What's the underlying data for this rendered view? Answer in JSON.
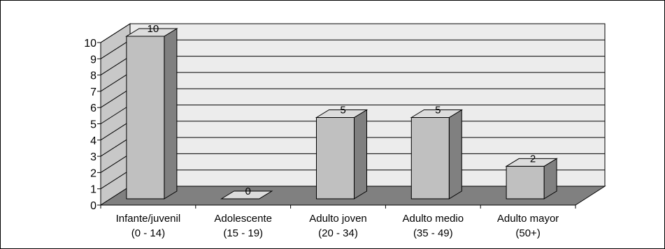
{
  "chart_data": {
    "type": "bar",
    "style": "3d-column",
    "categories": [
      [
        "Infante/juvenil",
        "(0 - 14)"
      ],
      [
        "Adolescente",
        "(15 - 19)"
      ],
      [
        "Adulto joven",
        "(20 - 34)"
      ],
      [
        "Adulto medio",
        "(35 - 49)"
      ],
      [
        "Adulto mayor",
        "(50+)"
      ]
    ],
    "values": [
      10,
      0,
      5,
      5,
      2
    ],
    "data_labels": [
      "10",
      "0",
      "5",
      "5",
      "2"
    ],
    "y_ticks": [
      "0",
      "1",
      "2",
      "3",
      "4",
      "5",
      "6",
      "7",
      "8",
      "9",
      "10"
    ],
    "ylim": [
      0,
      10
    ],
    "grid": true,
    "legend": false,
    "title": "",
    "xlabel": "",
    "ylabel": "",
    "colors": {
      "bar_front": "#c0c0c0",
      "bar_side": "#808080",
      "bar_top": "#dcdcdc",
      "back_wall": "#ececec",
      "side_wall": "#c8c8c8",
      "floor": "#808080",
      "gridline": "#000000"
    }
  }
}
